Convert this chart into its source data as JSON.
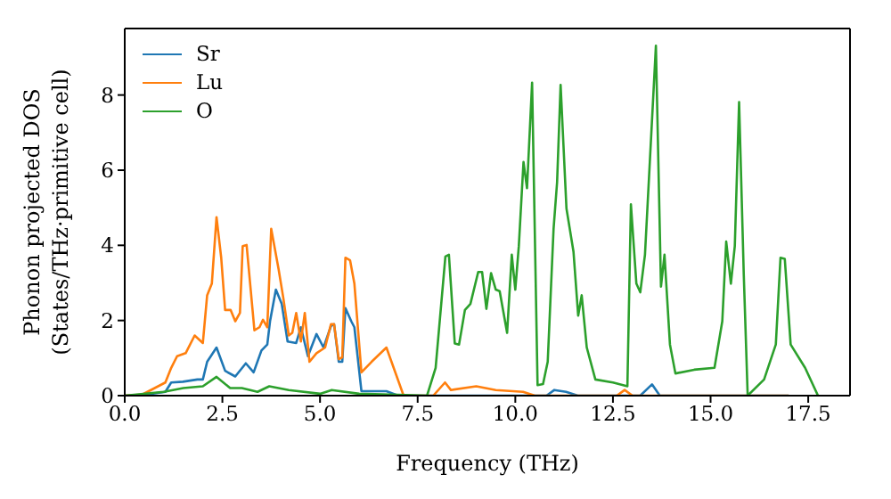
{
  "chart_data": {
    "type": "line",
    "xlabel": "Frequency (THz)",
    "ylabel": "Phonon projected DOS\n(States/THz·primitive cell)",
    "xlim": [
      0,
      18.57
    ],
    "xticks": [
      {
        "value": 0,
        "label": "0.0"
      },
      {
        "value": 2.5,
        "label": "2.5"
      },
      {
        "value": 5,
        "label": "5.0"
      },
      {
        "value": 7.5,
        "label": "7.5"
      },
      {
        "value": 10,
        "label": "10.0"
      },
      {
        "value": 12.5,
        "label": "12.5"
      },
      {
        "value": 15,
        "label": "15.0"
      },
      {
        "value": 17.5,
        "label": "17.5"
      }
    ],
    "ylim": [
      0,
      9.77
    ],
    "yticks": [
      0,
      2,
      4,
      6,
      8
    ],
    "grid": false,
    "legend": "top left",
    "marker": "none",
    "line_style": "solid",
    "series": [
      {
        "name": "Sr",
        "color": "#1f77b4",
        "x": [
          0,
          0.5,
          1.04,
          1.19,
          1.49,
          1.86,
          2.0,
          2.11,
          2.35,
          2.57,
          2.83,
          3.1,
          3.3,
          3.5,
          3.65,
          3.72,
          3.87,
          4.02,
          4.17,
          4.39,
          4.51,
          4.69,
          4.91,
          5.09,
          5.28,
          5.36,
          5.48,
          5.57,
          5.65,
          5.8,
          5.88,
          6.06,
          6.7,
          7.0,
          10.8,
          11.0,
          11.3,
          11.6,
          13.2,
          13.5,
          13.7,
          14.0,
          17.0
        ],
        "values": [
          0,
          0.02,
          0.1,
          0.35,
          0.37,
          0.43,
          0.43,
          0.9,
          1.28,
          0.66,
          0.51,
          0.86,
          0.62,
          1.2,
          1.36,
          1.98,
          2.82,
          2.44,
          1.44,
          1.4,
          1.82,
          1.05,
          1.64,
          1.28,
          1.85,
          1.9,
          0.9,
          0.9,
          2.33,
          1.98,
          1.82,
          0.12,
          0.12,
          0,
          0,
          0.15,
          0.1,
          0,
          0,
          0.3,
          0,
          0,
          0
        ]
      },
      {
        "name": "Lu",
        "color": "#ff7f0e",
        "x": [
          0,
          0.45,
          1.04,
          1.19,
          1.34,
          1.56,
          1.79,
          2.0,
          2.11,
          2.23,
          2.35,
          2.47,
          2.57,
          2.71,
          2.83,
          2.95,
          3.02,
          3.12,
          3.32,
          3.45,
          3.54,
          3.65,
          3.75,
          3.94,
          4.06,
          4.2,
          4.29,
          4.39,
          4.51,
          4.61,
          4.73,
          4.91,
          5.13,
          5.28,
          5.36,
          5.48,
          5.57,
          5.65,
          5.77,
          5.88,
          6.06,
          6.32,
          6.7,
          7.14,
          7.9,
          8.2,
          8.35,
          9.0,
          9.5,
          10.2,
          10.5,
          12.6,
          12.8,
          13.0,
          17.0
        ],
        "values": [
          0,
          0.03,
          0.35,
          0.74,
          1.05,
          1.13,
          1.6,
          1.4,
          2.67,
          2.98,
          4.75,
          3.67,
          2.28,
          2.28,
          1.98,
          2.2,
          3.98,
          4.01,
          1.74,
          1.82,
          2.02,
          1.82,
          4.44,
          3.36,
          2.6,
          1.6,
          1.67,
          2.2,
          1.44,
          2.2,
          0.9,
          1.13,
          1.28,
          1.9,
          1.9,
          0.97,
          1.02,
          3.67,
          3.6,
          2.98,
          0.62,
          0.9,
          1.28,
          0,
          0,
          0.35,
          0.15,
          0.25,
          0.15,
          0.1,
          0,
          0,
          0.15,
          0,
          0
        ]
      },
      {
        "name": "O",
        "color": "#2ca02c",
        "x": [
          0,
          1.0,
          1.5,
          2.0,
          2.35,
          2.7,
          3.0,
          3.4,
          3.7,
          4.2,
          5.0,
          5.3,
          6.0,
          7.0,
          7.74,
          7.96,
          8.21,
          8.3,
          8.45,
          8.56,
          8.71,
          8.85,
          9.05,
          9.15,
          9.26,
          9.38,
          9.5,
          9.6,
          9.79,
          9.91,
          10.0,
          10.09,
          10.21,
          10.3,
          10.43,
          10.57,
          10.71,
          10.83,
          10.98,
          11.07,
          11.16,
          11.31,
          11.49,
          11.61,
          11.7,
          11.83,
          12.05,
          12.5,
          12.87,
          12.96,
          13.1,
          13.2,
          13.32,
          13.6,
          13.73,
          13.82,
          13.96,
          14.1,
          14.58,
          15.1,
          15.3,
          15.4,
          15.52,
          15.62,
          15.73,
          15.85,
          15.95,
          16.37,
          16.67,
          16.79,
          16.9,
          17.05,
          17.42,
          17.75
        ],
        "values": [
          0,
          0.1,
          0.2,
          0.25,
          0.5,
          0.2,
          0.2,
          0.1,
          0.25,
          0.15,
          0.05,
          0.15,
          0.05,
          0.02,
          0,
          0.74,
          3.7,
          3.75,
          1.39,
          1.36,
          2.28,
          2.44,
          3.29,
          3.29,
          2.31,
          3.26,
          2.82,
          2.78,
          1.67,
          3.75,
          2.82,
          3.98,
          6.22,
          5.52,
          8.33,
          0.28,
          0.31,
          0.9,
          4.44,
          5.68,
          8.27,
          4.98,
          3.83,
          2.13,
          2.67,
          1.28,
          0.43,
          0.35,
          0.25,
          5.09,
          2.98,
          2.75,
          3.75,
          9.31,
          2.9,
          3.75,
          1.36,
          0.59,
          0.69,
          0.74,
          1.98,
          4.1,
          2.98,
          3.98,
          7.81,
          3.21,
          0,
          0.43,
          1.36,
          3.67,
          3.64,
          1.36,
          0.74,
          0
        ]
      }
    ]
  }
}
